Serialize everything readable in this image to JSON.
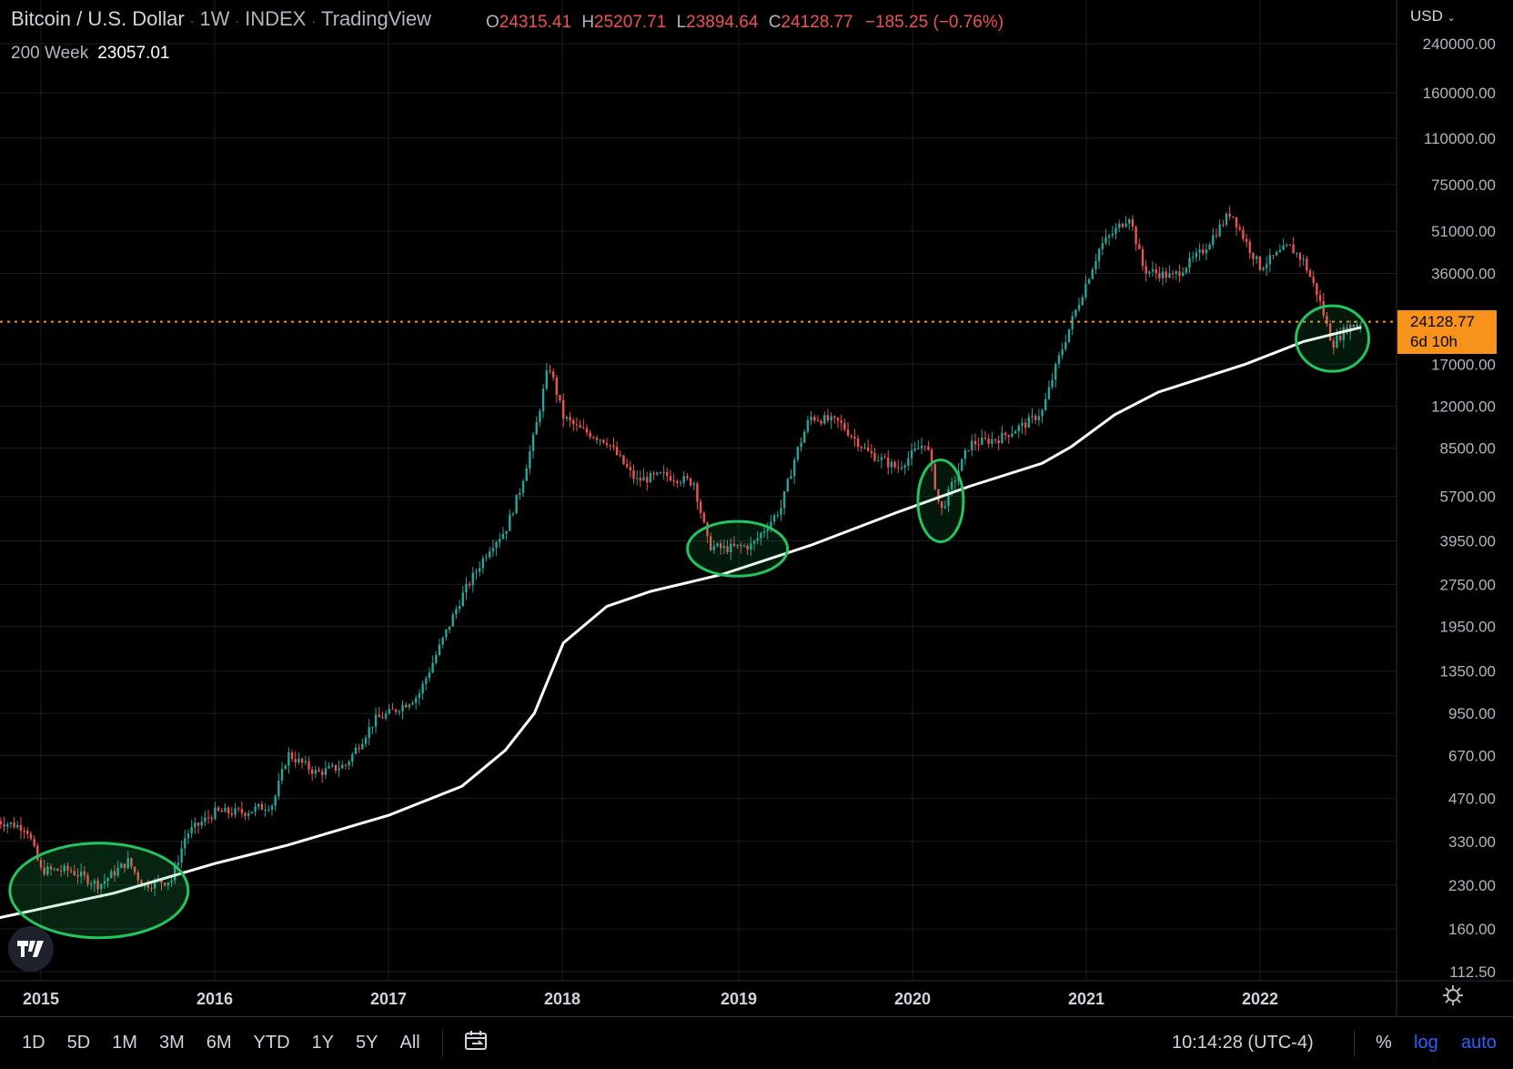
{
  "header": {
    "symbol": "Bitcoin / U.S. Dollar",
    "interval": "1W",
    "exchange": "INDEX",
    "source": "TradingView",
    "ohlc": {
      "o_label": "O",
      "o": "24315.41",
      "h_label": "H",
      "h": "25207.71",
      "l_label": "L",
      "l": "23894.64",
      "c_label": "C",
      "c": "24128.77",
      "change": "−185.25 (−0.76%)"
    },
    "indicator": {
      "name": "200 Week",
      "value": "23057.01"
    }
  },
  "price_axis": {
    "currency": "USD",
    "ticks": [
      "240000.00",
      "160000.00",
      "110000.00",
      "75000.00",
      "51000.00",
      "36000.00",
      "24128.77",
      "17000.00",
      "12000.00",
      "8500.00",
      "5700.00",
      "3950.00",
      "2750.00",
      "1950.00",
      "1350.00",
      "950.00",
      "670.00",
      "470.00",
      "330.00",
      "230.00",
      "160.00",
      "112.50"
    ],
    "last_price": "24128.77",
    "countdown": "6d 10h"
  },
  "time_axis": {
    "ticks": [
      "2015",
      "2016",
      "2017",
      "2018",
      "2019",
      "2020",
      "2021",
      "2022"
    ]
  },
  "bottom_toolbar": {
    "ranges": [
      "1D",
      "5D",
      "1M",
      "3M",
      "6M",
      "YTD",
      "1Y",
      "5Y",
      "All"
    ],
    "clock": "10:14:28 (UTC-4)",
    "percent": "%",
    "log": "log",
    "auto": "auto"
  },
  "colors": {
    "up": "#26a69a",
    "down": "#ef5350",
    "ma": "#ffffff",
    "highlight": "#22c55e",
    "last_price": "#f7931a"
  },
  "chart_data": {
    "type": "line",
    "scale": "log",
    "ylim": [
      112.5,
      240000
    ],
    "xlim": [
      "2014-10-01",
      "2022-11-15"
    ],
    "series": [
      {
        "name": "Bitcoin / U.S. Dollar",
        "x": [
          "2014-10",
          "2014-12",
          "2015-01",
          "2015-03",
          "2015-05",
          "2015-07",
          "2015-08",
          "2015-10",
          "2015-11",
          "2016-01",
          "2016-03",
          "2016-05",
          "2016-06",
          "2016-08",
          "2016-10",
          "2016-12",
          "2017-01",
          "2017-03",
          "2017-05",
          "2017-06",
          "2017-08",
          "2017-09",
          "2017-10",
          "2017-11",
          "2017-12",
          "2018-01",
          "2018-02",
          "2018-04",
          "2018-06",
          "2018-08",
          "2018-10",
          "2018-11",
          "2018-12",
          "2019-02",
          "2019-04",
          "2019-05",
          "2019-06",
          "2019-08",
          "2019-10",
          "2019-12",
          "2020-02",
          "2020-03",
          "2020-05",
          "2020-07",
          "2020-09",
          "2020-10",
          "2020-11",
          "2020-12",
          "2021-01",
          "2021-02",
          "2021-04",
          "2021-05",
          "2021-07",
          "2021-09",
          "2021-11",
          "2021-12",
          "2022-01",
          "2022-03",
          "2022-04",
          "2022-05",
          "2022-06",
          "2022-07",
          "2022-08"
        ],
        "values": [
          390,
          370,
          260,
          260,
          230,
          280,
          230,
          240,
          350,
          420,
          420,
          450,
          680,
          580,
          620,
          900,
          950,
          1100,
          1900,
          2500,
          3800,
          4300,
          6000,
          9500,
          17000,
          11000,
          10000,
          9000,
          6500,
          6800,
          6400,
          3800,
          3700,
          3800,
          5200,
          8000,
          11000,
          10500,
          8200,
          7200,
          9000,
          5000,
          8800,
          9200,
          10500,
          11500,
          17000,
          24000,
          33000,
          45000,
          58000,
          37000,
          35000,
          43000,
          60000,
          47000,
          38000,
          45000,
          40000,
          30000,
          20000,
          23000,
          24128.77
        ]
      },
      {
        "name": "200 Week",
        "x": [
          "2014-10",
          "2015-06",
          "2016-01",
          "2016-06",
          "2017-01",
          "2017-06",
          "2017-09",
          "2017-11",
          "2018-01",
          "2018-04",
          "2018-07",
          "2018-12",
          "2019-06",
          "2019-12",
          "2020-05",
          "2020-10",
          "2020-12",
          "2021-03",
          "2021-06",
          "2021-12",
          "2022-04",
          "2022-08"
        ],
        "values": [
          175,
          215,
          275,
          320,
          410,
          520,
          700,
          950,
          1700,
          2300,
          2600,
          3000,
          3800,
          5000,
          6200,
          7500,
          8600,
          11200,
          13500,
          17000,
          20500,
          23057.01
        ]
      }
    ],
    "annotations": [
      {
        "type": "ellipse",
        "label": "",
        "center_x": "2015-05",
        "center_y": 220
      },
      {
        "type": "ellipse",
        "label": "",
        "center_x": "2019-01",
        "center_y": 3700
      },
      {
        "type": "ellipse",
        "label": "",
        "center_x": "2020-03",
        "center_y": 5500
      },
      {
        "type": "ellipse",
        "label": "",
        "center_x": "2022-06",
        "center_y": 21000
      }
    ]
  }
}
